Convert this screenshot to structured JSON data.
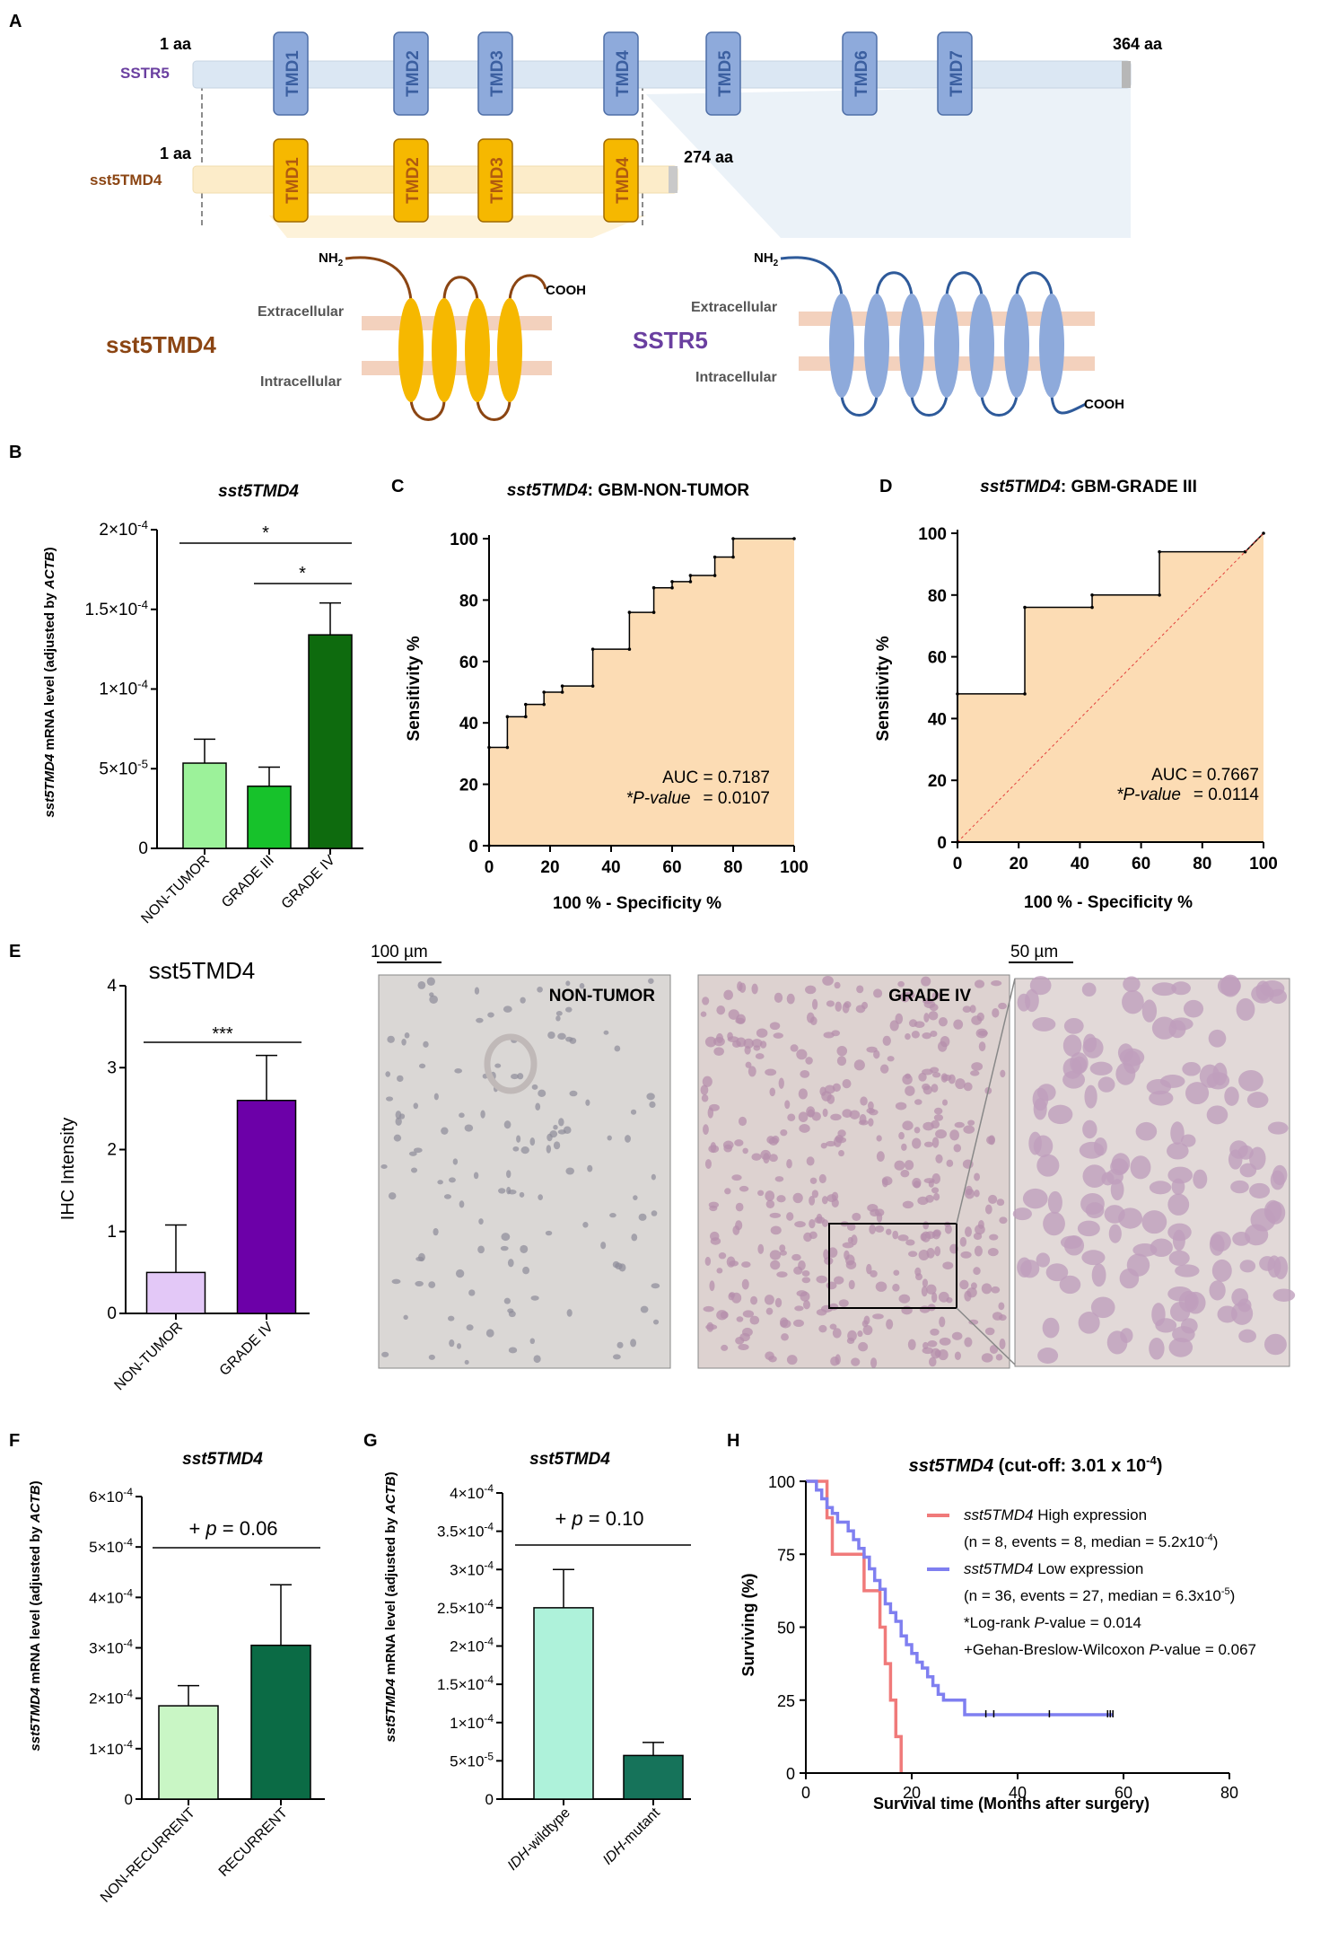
{
  "panel_letters": [
    "A",
    "B",
    "C",
    "D",
    "E",
    "F",
    "G",
    "H"
  ],
  "colors": {
    "sstr5_bar": "#dbe7f3",
    "sstr5_tmd": "#8eaadb",
    "sstr5_text": "#6a3fa0",
    "sst5tmd4_bar": "#fcecc9",
    "sst5tmd4_tmd": "#f6b800",
    "sst5tmd4_text": "#8b4513",
    "membrane": "#f3d1bd",
    "nontumor_green": "#9cf29a",
    "grade3_green": "#17c22b",
    "grade4_green": "#0e6b0e",
    "roc_fill": "#fcdcb4",
    "ihc_nontumor": "#e3c8f7",
    "ihc_grade4": "#6c00a8",
    "nonrecurrent": "#c9f6c5",
    "recurrent": "#0b6b45",
    "idh_wt": "#aef2da",
    "idh_mut": "#16735a",
    "km_high": "#f07a7a",
    "km_low": "#7f7ff0"
  },
  "panelA": {
    "sstr5_label": "SSTR5",
    "sstr5_start": "1 aa",
    "sstr5_end": "364 aa",
    "sstr5_tmds": [
      "TMD1",
      "TMD2",
      "TMD3",
      "TMD4",
      "TMD5",
      "TMD6",
      "TMD7"
    ],
    "sst5tmd4_label": "sst5TMD4",
    "sst5tmd4_start": "1 aa",
    "sst5tmd4_end": "274 aa",
    "sst5tmd4_tmds": [
      "TMD1",
      "TMD2",
      "TMD3",
      "TMD4"
    ],
    "nh2": "NH",
    "nh2_sub": "2",
    "cooh": "COOH",
    "extracellular": "Extracellular",
    "intracellular": "Intracellular",
    "left_name": "sst5TMD4",
    "right_name": "SSTR5"
  },
  "panelB": {
    "title": "sst5TMD4",
    "ylabel_italic": "sst5TMD4",
    "ylabel_mid": " mRNA level (adjusted by ",
    "ylabel_italic2": "ACTB",
    "ylabel_end": ")",
    "yticks": [
      {
        "base": "0",
        "exp": ""
      },
      {
        "base": "5×10",
        "exp": "-5"
      },
      {
        "base": "1×10",
        "exp": "-4"
      },
      {
        "base": "1.5×10",
        "exp": "-4"
      },
      {
        "base": "2×10",
        "exp": "-4"
      }
    ],
    "sig_top": "*",
    "sig_inner": "*"
  },
  "panelC": {
    "title_italic": "sst5TMD4",
    "title_rest": ": GBM-NON-TUMOR",
    "ylabel": "Sensitivity %",
    "xlabel": "100 % - Specificity %",
    "ticks": [
      "0",
      "20",
      "40",
      "60",
      "80",
      "100"
    ],
    "auc": "AUC = 0.7187",
    "pval_label": "*P-value",
    "pval_value": "= 0.0107"
  },
  "panelD": {
    "title_italic": "sst5TMD4",
    "title_rest": ": GBM-GRADE III",
    "ylabel": "Sensitivity %",
    "xlabel": "100 % - Specificity %",
    "ticks": [
      "0",
      "20",
      "40",
      "60",
      "80",
      "100"
    ],
    "auc": "AUC = 0.7667",
    "pval_label": "*P-value",
    "pval_value": "= 0.0114"
  },
  "panelE": {
    "title": "sst5TMD4",
    "ylabel": "IHC Intensity",
    "yticks": [
      "0",
      "1",
      "2",
      "3",
      "4"
    ],
    "sig": "***",
    "scale1": "100 µm",
    "scale2": "50 µm",
    "img1_label": "NON-TUMOR",
    "img2_label": "GRADE IV"
  },
  "panelF": {
    "title": "sst5TMD4",
    "ylabel_italic": "sst5TMD4",
    "ylabel_mid": " mRNA level (adjusted by ",
    "ylabel_italic2": "ACTB",
    "ylabel_end": ")",
    "yticks": [
      {
        "base": "0",
        "exp": ""
      },
      {
        "base": "1×10",
        "exp": "-4"
      },
      {
        "base": "2×10",
        "exp": "-4"
      },
      {
        "base": "3×10",
        "exp": "-4"
      },
      {
        "base": "4×10",
        "exp": "-4"
      },
      {
        "base": "5×10",
        "exp": "-4"
      },
      {
        "base": "6×10",
        "exp": "-4"
      }
    ],
    "pval_prefix": "+ ",
    "pval_p": "p",
    "pval_rest": " = 0.06"
  },
  "panelG": {
    "title": "sst5TMD4",
    "ylabel_italic": "sst5TMD4",
    "ylabel_mid": " mRNA level (adjusted by ",
    "ylabel_italic2": "ACTB",
    "ylabel_end": ")",
    "yticks": [
      {
        "base": "0",
        "exp": ""
      },
      {
        "base": "5×10",
        "exp": "-5"
      },
      {
        "base": "1×10",
        "exp": "-4"
      },
      {
        "base": "1.5×10",
        "exp": "-4"
      },
      {
        "base": "2×10",
        "exp": "-4"
      },
      {
        "base": "2.5×10",
        "exp": "-4"
      },
      {
        "base": "3×10",
        "exp": "-4"
      },
      {
        "base": "3.5×10",
        "exp": "-4"
      },
      {
        "base": "4×10",
        "exp": "-4"
      }
    ],
    "pval_prefix": "+ ",
    "pval_p": "p",
    "pval_rest": " = 0.10",
    "cat_italic": [
      "IDH",
      "IDH"
    ],
    "cat_rest": [
      "-wildtype",
      "-mutant"
    ]
  },
  "panelH": {
    "title_italic": "sst5TMD4",
    "title_rest": " (cut-off: 3.01 x 10",
    "title_exp": "-4",
    "title_end": ")",
    "ylabel": "Surviving (%)",
    "xlabel": "Survival time (Months after surgery)",
    "yticks": [
      "0",
      "25",
      "50",
      "75",
      "100"
    ],
    "xticks": [
      "0",
      "20",
      "40",
      "60",
      "80"
    ],
    "legend_high_italic": "sst5TMD4",
    "legend_high_rest": " High expression",
    "legend_high_detail": "(n = 8, events = 8, median = 5.2x10",
    "legend_high_exp": "-4",
    "legend_low_italic": "sst5TMD4",
    "legend_low_rest": " Low expression",
    "legend_low_detail": "(n = 36, events = 27, median = 6.3x10",
    "legend_low_exp": "-5",
    "logrank_pre": "*Log-rank ",
    "logrank_p": "P",
    "logrank_rest": "-value = 0.014",
    "gbw_pre": "+Gehan-Breslow-Wilcoxon ",
    "gbw_p": "P",
    "gbw_rest": "-value = 0.067"
  },
  "chart_data": [
    {
      "id": "B",
      "type": "bar",
      "title": "sst5TMD4",
      "categories": [
        "NON-TUMOR",
        "GRADE III",
        "GRADE IV"
      ],
      "values": [
        5.35e-05,
        3.9e-05,
        0.000134
      ],
      "errors": [
        1.5e-05,
        1.2e-05,
        2e-05
      ],
      "ylim": [
        0,
        0.0002
      ]
    },
    {
      "id": "C",
      "type": "line",
      "title": "sst5TMD4: GBM-NON-TUMOR",
      "x": [
        0,
        0,
        6,
        6,
        12,
        12,
        18,
        18,
        24,
        24,
        34,
        34,
        46,
        46,
        54,
        54,
        60,
        60,
        66,
        66,
        74,
        74,
        80,
        80,
        100
      ],
      "y": [
        0,
        32,
        32,
        42,
        42,
        46,
        46,
        50,
        50,
        52,
        52,
        64,
        64,
        76,
        76,
        84,
        84,
        86,
        86,
        88,
        88,
        94,
        94,
        100,
        100
      ],
      "xlim": [
        0,
        100
      ],
      "ylim": [
        0,
        100
      ],
      "auc": 0.7187,
      "p_value": 0.0107
    },
    {
      "id": "D",
      "type": "line",
      "title": "sst5TMD4: GBM-GRADE III",
      "x": [
        0,
        0,
        22,
        22,
        44,
        44,
        66,
        66,
        94,
        100
      ],
      "y": [
        0,
        48,
        48,
        76,
        76,
        80,
        80,
        94,
        94,
        100
      ],
      "xlim": [
        0,
        100
      ],
      "ylim": [
        0,
        100
      ],
      "auc": 0.7667,
      "p_value": 0.0114
    },
    {
      "id": "E",
      "type": "bar",
      "title": "sst5TMD4",
      "categories": [
        "NON-TUMOR",
        "GRADE IV"
      ],
      "values": [
        0.5,
        2.6
      ],
      "errors": [
        0.58,
        0.55
      ],
      "ylim": [
        0,
        4
      ]
    },
    {
      "id": "F",
      "type": "bar",
      "title": "sst5TMD4",
      "categories": [
        "NON-RECURRENT",
        "RECURRENT"
      ],
      "values": [
        0.000185,
        0.000305
      ],
      "errors": [
        4e-05,
        0.00012
      ],
      "ylim": [
        0,
        0.0006
      ]
    },
    {
      "id": "G",
      "type": "bar",
      "title": "sst5TMD4",
      "categories": [
        "IDH-wildtype",
        "IDH-mutant"
      ],
      "values": [
        0.00025,
        5.7e-05
      ],
      "errors": [
        5e-05,
        1.7e-05
      ],
      "ylim": [
        0,
        0.0004
      ]
    },
    {
      "id": "H",
      "type": "line",
      "title": "sst5TMD4 (cut-off: 3.01 x 10-4)",
      "series": [
        {
          "name": "sst5TMD4 High expression",
          "x": [
            0,
            3,
            4,
            5,
            6,
            11,
            13,
            14,
            15,
            16,
            17,
            18
          ],
          "y": [
            100,
            100,
            87.5,
            75,
            75,
            62.5,
            62.5,
            50,
            37.5,
            25,
            12.5,
            0
          ]
        },
        {
          "name": "sst5TMD4 Low expression",
          "x": [
            0,
            2,
            3,
            4,
            5,
            6,
            8,
            9,
            10,
            11,
            12,
            13,
            14,
            15,
            16,
            17,
            18,
            19,
            20,
            21,
            22,
            23,
            24,
            25,
            26,
            30,
            58
          ],
          "y": [
            100,
            97,
            94,
            91,
            89,
            86,
            83,
            80,
            77,
            74,
            70,
            66,
            63,
            58,
            55,
            52,
            47,
            44,
            41,
            38,
            36,
            33,
            30,
            27,
            25,
            20,
            20
          ]
        }
      ],
      "xlim": [
        0,
        80
      ],
      "ylim": [
        0,
        100
      ]
    }
  ]
}
